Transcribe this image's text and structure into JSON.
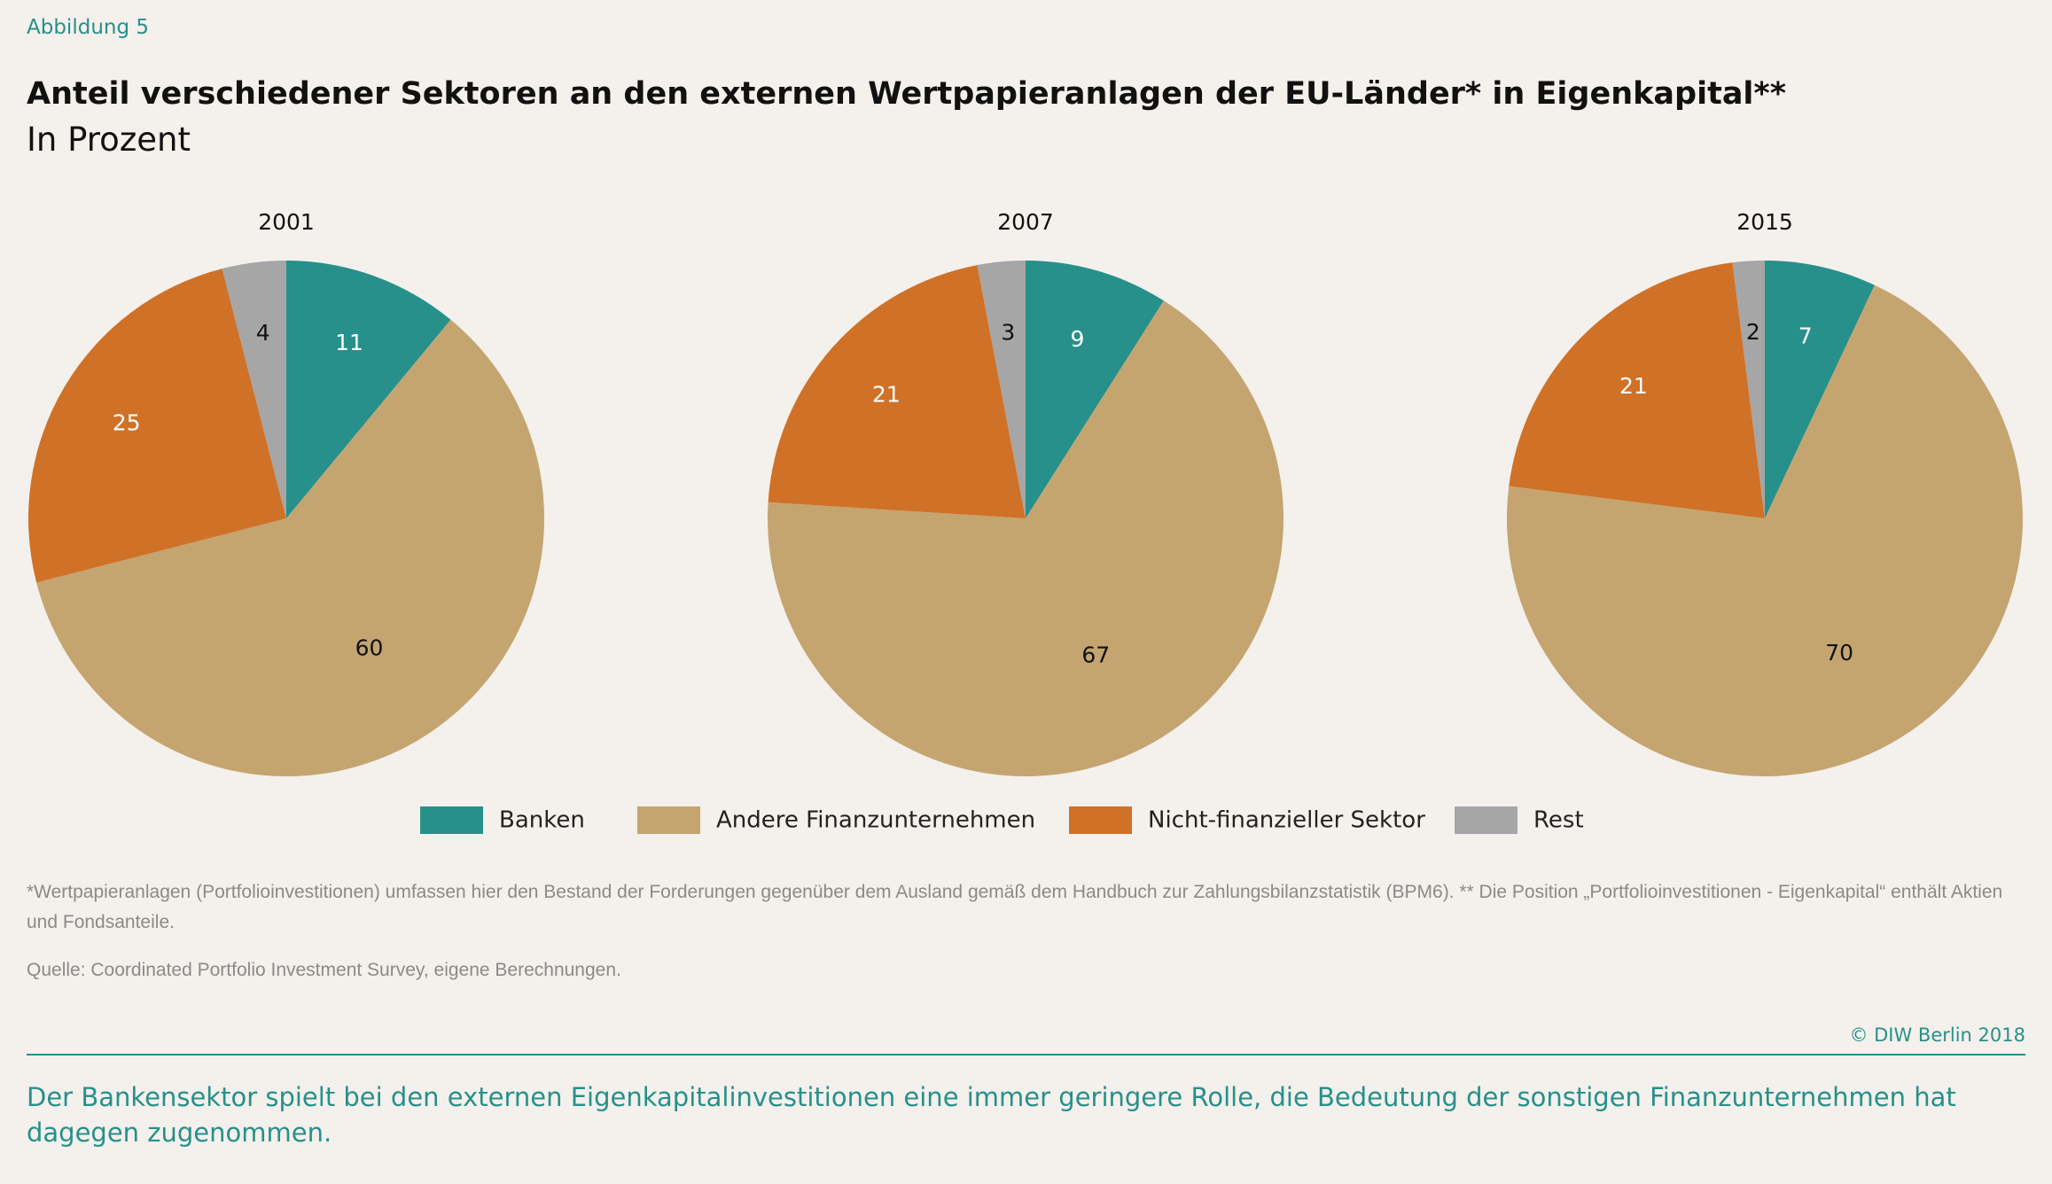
{
  "figure_label": "Abbildung 5",
  "title": "Anteil verschiedener Sektoren an den externen Wertpapieranlagen der EU-Länder* in Eigenkapital**",
  "subtitle": "In Prozent",
  "footnote": "*Wertpapieranlagen (Portfolioinvestitionen) umfassen hier den Bestand der Forderungen gegenüber dem Ausland gemäß dem Handbuch zur Zahlungsbilanzstatistik (BPM6). ** Die Position „Portfolioinvestitionen - Eigenkapital“ enthält Aktien und Fondsanteile.",
  "source": "Quelle: Coordinated Portfolio Investment Survey, eigene Berechnungen.",
  "copyright": "© DIW Berlin 2018",
  "caption": "Der Bankensektor spielt bei den externen Eigenkapitalinvestitionen eine immer geringere Rolle, die Bedeutung der sonstigen Finanzunternehmen hat dagegen zugenommen.",
  "chart_data": [
    {
      "type": "pie",
      "title": "2001",
      "categories": [
        "Banken",
        "Andere Finanzunternehmen",
        "Nicht-finanzieller Sektor",
        "Rest"
      ],
      "values": [
        11,
        60,
        25,
        4
      ],
      "colors": [
        "#27908a",
        "#c4a570",
        "#d07128",
        "#a6a6a6"
      ]
    },
    {
      "type": "pie",
      "title": "2007",
      "categories": [
        "Banken",
        "Andere Finanzunternehmen",
        "Nicht-finanzieller Sektor",
        "Rest"
      ],
      "values": [
        9,
        67,
        21,
        3
      ],
      "colors": [
        "#27908a",
        "#c4a570",
        "#d07128",
        "#a6a6a6"
      ]
    },
    {
      "type": "pie",
      "title": "2015",
      "categories": [
        "Banken",
        "Andere Finanzunternehmen",
        "Nicht-finanzieller Sektor",
        "Rest"
      ],
      "values": [
        7,
        70,
        21,
        2
      ],
      "colors": [
        "#27908a",
        "#c4a570",
        "#d07128",
        "#a6a6a6"
      ]
    }
  ]
}
